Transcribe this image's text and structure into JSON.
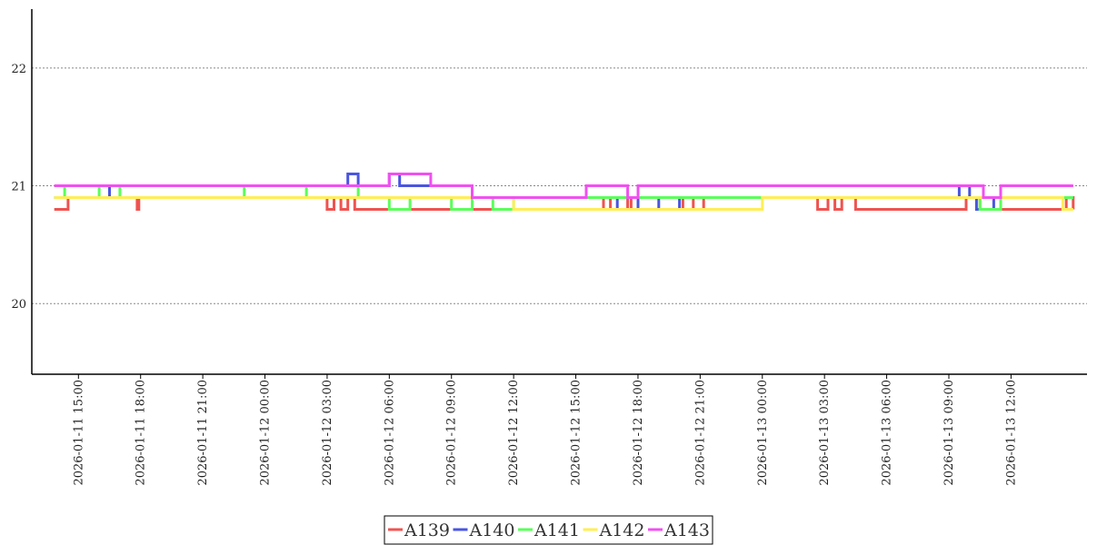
{
  "chart_data": {
    "type": "line",
    "title": "",
    "xlabel": "",
    "ylabel": "",
    "ylim": [
      19.4,
      22.5
    ],
    "yticks": [
      20,
      21,
      22
    ],
    "grid": "horizontal dotted",
    "legend_position": "bottom-center",
    "x_ticks": [
      "2026-01-11 15:00",
      "2026-01-11 18:00",
      "2026-01-11 21:00",
      "2026-01-12 00:00",
      "2026-01-12 03:00",
      "2026-01-12 06:00",
      "2026-01-12 09:00",
      "2026-01-12 12:00",
      "2026-01-12 15:00",
      "2026-01-12 18:00",
      "2026-01-12 21:00",
      "2026-01-13 00:00",
      "2026-01-13 03:00",
      "2026-01-13 06:00",
      "2026-01-13 09:00",
      "2026-01-13 12:00"
    ],
    "xlim": [
      "2026-01-11 12:45",
      "2026-01-13 15:40"
    ],
    "series": [
      {
        "name": "A139",
        "color": "#ef5350",
        "points": [
          [
            "2026-01-11 13:50",
            20.8
          ],
          [
            "2026-01-11 14:30",
            20.9
          ],
          [
            "2026-01-11 17:50",
            20.8
          ],
          [
            "2026-01-11 17:55",
            20.9
          ],
          [
            "2026-01-12 03:00",
            20.8
          ],
          [
            "2026-01-12 03:20",
            20.9
          ],
          [
            "2026-01-12 03:40",
            20.8
          ],
          [
            "2026-01-12 04:00",
            20.9
          ],
          [
            "2026-01-12 04:20",
            20.8
          ],
          [
            "2026-01-12 16:20",
            20.9
          ],
          [
            "2026-01-12 16:40",
            20.8
          ],
          [
            "2026-01-12 17:30",
            20.9
          ],
          [
            "2026-01-12 17:40",
            20.8
          ],
          [
            "2026-01-12 20:10",
            20.9
          ],
          [
            "2026-01-12 20:40",
            20.8
          ],
          [
            "2026-01-12 21:10",
            20.9
          ],
          [
            "2026-01-13 02:40",
            20.8
          ],
          [
            "2026-01-13 03:10",
            20.9
          ],
          [
            "2026-01-13 03:30",
            20.8
          ],
          [
            "2026-01-13 03:50",
            20.9
          ],
          [
            "2026-01-13 04:30",
            20.8
          ],
          [
            "2026-01-13 09:50",
            20.9
          ],
          [
            "2026-01-13 10:30",
            20.8
          ],
          [
            "2026-01-13 14:40",
            20.9
          ],
          [
            "2026-01-13 15:00",
            20.8
          ]
        ]
      },
      {
        "name": "A140",
        "color": "#4a55e0",
        "points": [
          [
            "2026-01-11 13:50",
            20.9
          ],
          [
            "2026-01-11 14:30",
            20.9
          ],
          [
            "2026-01-11 16:30",
            21.0
          ],
          [
            "2026-01-12 04:00",
            21.1
          ],
          [
            "2026-01-12 04:30",
            21.0
          ],
          [
            "2026-01-12 06:00",
            21.1
          ],
          [
            "2026-01-12 06:30",
            21.0
          ],
          [
            "2026-01-12 10:00",
            20.9
          ],
          [
            "2026-01-12 17:00",
            20.8
          ],
          [
            "2026-01-12 18:00",
            20.9
          ],
          [
            "2026-01-12 19:00",
            20.8
          ],
          [
            "2026-01-12 20:00",
            20.9
          ],
          [
            "2026-01-13 09:30",
            21.0
          ],
          [
            "2026-01-13 10:00",
            20.9
          ],
          [
            "2026-01-13 10:20",
            20.8
          ],
          [
            "2026-01-13 11:10",
            20.9
          ],
          [
            "2026-01-13 15:00",
            20.9
          ]
        ]
      },
      {
        "name": "A141",
        "color": "#5aff5a",
        "points": [
          [
            "2026-01-11 13:50",
            20.9
          ],
          [
            "2026-01-11 14:20",
            21.0
          ],
          [
            "2026-01-11 16:00",
            20.9
          ],
          [
            "2026-01-11 17:00",
            21.0
          ],
          [
            "2026-01-11 23:00",
            20.9
          ],
          [
            "2026-01-12 02:00",
            21.0
          ],
          [
            "2026-01-12 04:30",
            20.9
          ],
          [
            "2026-01-12 06:00",
            20.8
          ],
          [
            "2026-01-12 07:00",
            20.9
          ],
          [
            "2026-01-12 09:00",
            20.8
          ],
          [
            "2026-01-12 10:00",
            20.9
          ],
          [
            "2026-01-12 11:00",
            20.8
          ],
          [
            "2026-01-12 12:00",
            20.9
          ],
          [
            "2026-01-12 20:00",
            20.9
          ],
          [
            "2026-01-13 09:20",
            20.9
          ],
          [
            "2026-01-13 10:30",
            20.8
          ],
          [
            "2026-01-13 11:30",
            20.9
          ],
          [
            "2026-01-13 15:00",
            20.9
          ]
        ]
      },
      {
        "name": "A142",
        "color": "#ffee55",
        "points": [
          [
            "2026-01-11 13:50",
            20.9
          ],
          [
            "2026-01-11 23:00",
            20.9
          ],
          [
            "2026-01-12 12:00",
            20.8
          ],
          [
            "2026-01-12 16:00",
            20.8
          ],
          [
            "2026-01-12 21:30",
            20.8
          ],
          [
            "2026-01-13 00:00",
            20.9
          ],
          [
            "2026-01-13 14:30",
            20.8
          ],
          [
            "2026-01-13 15:00",
            20.8
          ]
        ]
      },
      {
        "name": "A143",
        "color": "#f050f0",
        "points": [
          [
            "2026-01-11 13:50",
            21.0
          ],
          [
            "2026-01-12 04:00",
            21.0
          ],
          [
            "2026-01-12 06:00",
            21.1
          ],
          [
            "2026-01-12 08:00",
            21.0
          ],
          [
            "2026-01-12 10:00",
            20.9
          ],
          [
            "2026-01-12 15:30",
            21.0
          ],
          [
            "2026-01-12 17:30",
            20.9
          ],
          [
            "2026-01-12 18:00",
            21.0
          ],
          [
            "2026-01-13 10:40",
            20.9
          ],
          [
            "2026-01-13 11:30",
            21.0
          ],
          [
            "2026-01-13 15:00",
            21.0
          ]
        ]
      }
    ]
  }
}
